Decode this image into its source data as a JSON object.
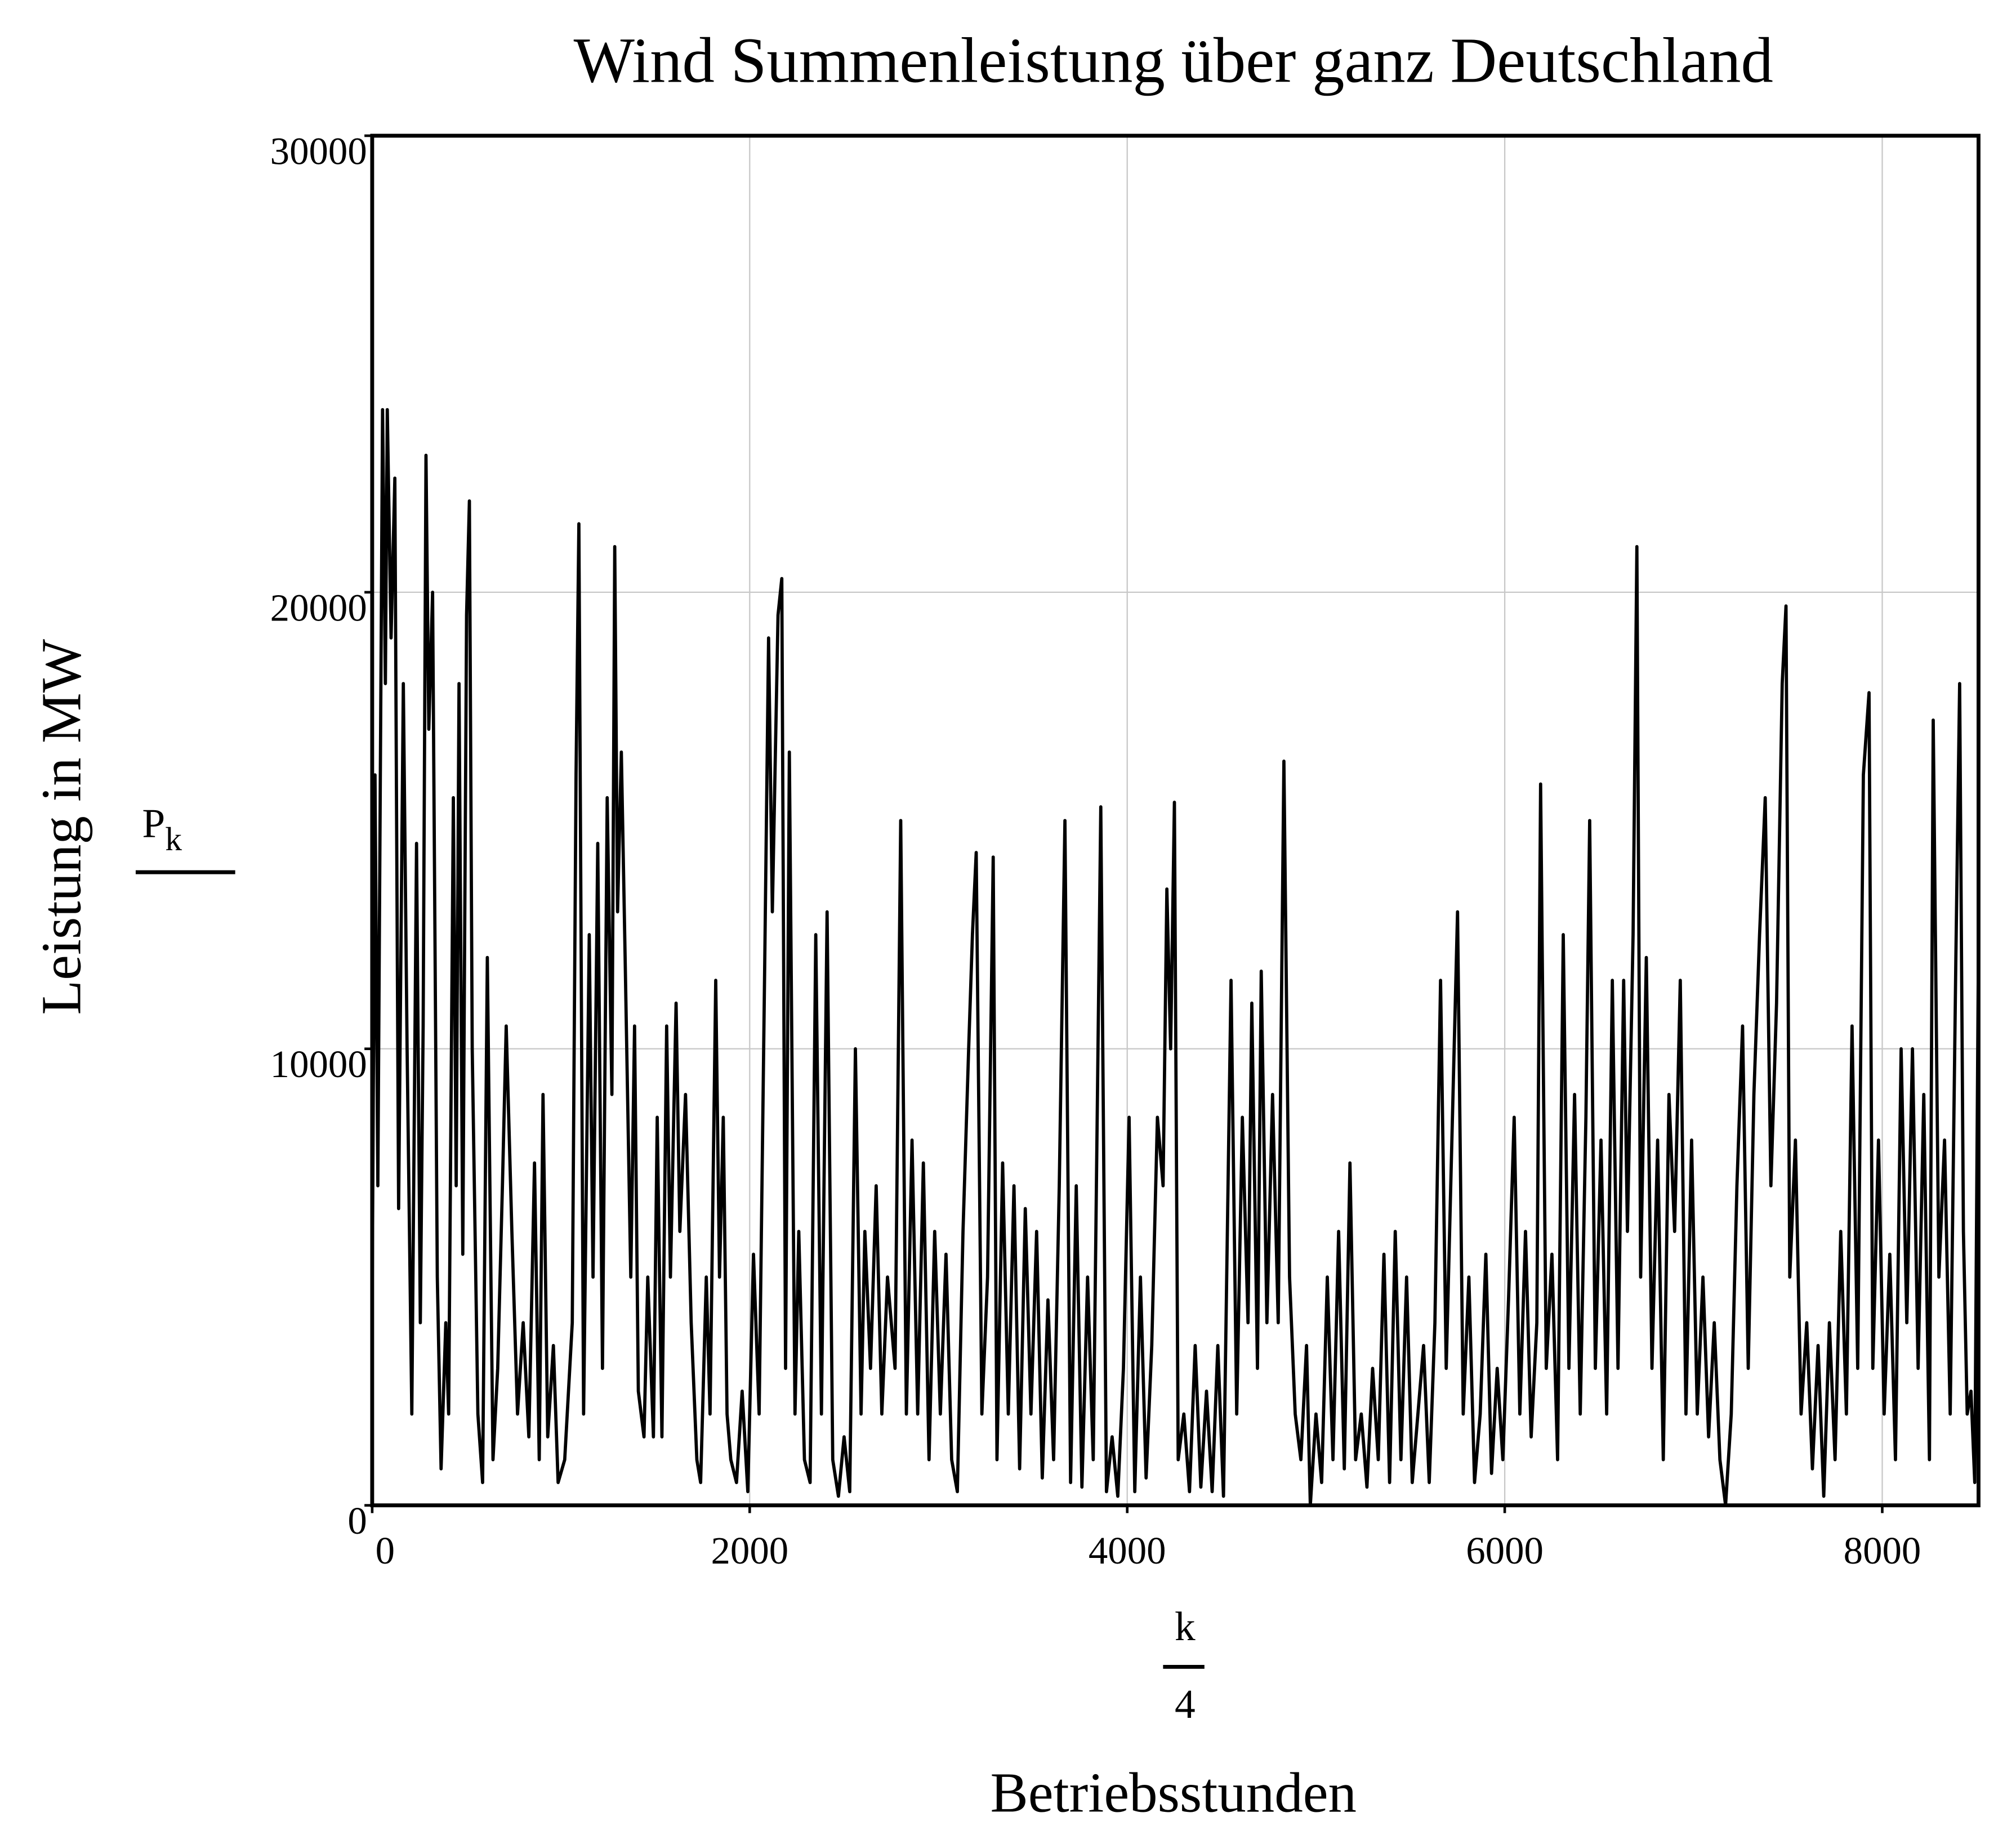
{
  "chart_data": {
    "type": "line",
    "title": "Wind Summenleistung über ganz Deutschland",
    "y_label": "Leistung in MW",
    "y_expression": {
      "base": "P",
      "subscript": "k"
    },
    "x_expression": {
      "numerator": "k",
      "denominator": "4"
    },
    "x_label": "Betriebsstunden",
    "xlim": [
      0,
      8510
    ],
    "ylim": [
      0,
      30000
    ],
    "xticks": [
      0,
      2000,
      4000,
      6000,
      8000
    ],
    "yticks": [
      0,
      10000,
      20000,
      30000
    ],
    "grid": true,
    "series": [
      {
        "color": "#000000",
        "x": [
          0,
          15,
          30,
          55,
          70,
          80,
          100,
          120,
          140,
          165,
          185,
          210,
          235,
          255,
          270,
          285,
          300,
          320,
          345,
          365,
          390,
          405,
          430,
          445,
          460,
          480,
          500,
          515,
          530,
          560,
          585,
          610,
          640,
          665,
          690,
          710,
          740,
          770,
          800,
          830,
          860,
          885,
          905,
          930,
          960,
          985,
          1020,
          1060,
          1080,
          1095,
          1120,
          1150,
          1170,
          1195,
          1220,
          1245,
          1270,
          1285,
          1300,
          1320,
          1340,
          1370,
          1390,
          1410,
          1440,
          1460,
          1490,
          1510,
          1535,
          1560,
          1580,
          1610,
          1630,
          1660,
          1690,
          1720,
          1740,
          1770,
          1790,
          1820,
          1840,
          1860,
          1880,
          1900,
          1930,
          1960,
          1990,
          2020,
          2050,
          2080,
          2100,
          2120,
          2150,
          2170,
          2190,
          2210,
          2240,
          2260,
          2290,
          2320,
          2350,
          2380,
          2410,
          2440,
          2470,
          2500,
          2530,
          2560,
          2590,
          2610,
          2640,
          2670,
          2700,
          2730,
          2770,
          2800,
          2830,
          2860,
          2890,
          2920,
          2950,
          2980,
          3010,
          3040,
          3070,
          3100,
          3130,
          3160,
          3180,
          3200,
          3230,
          3260,
          3290,
          3310,
          3340,
          3370,
          3400,
          3430,
          3460,
          3490,
          3520,
          3550,
          3580,
          3610,
          3640,
          3670,
          3700,
          3730,
          3760,
          3790,
          3820,
          3860,
          3890,
          3920,
          3950,
          3980,
          4010,
          4040,
          4070,
          4100,
          4130,
          4160,
          4190,
          4210,
          4230,
          4250,
          4270,
          4300,
          4330,
          4360,
          4390,
          4420,
          4450,
          4480,
          4510,
          4550,
          4580,
          4610,
          4640,
          4660,
          4690,
          4710,
          4740,
          4770,
          4800,
          4830,
          4860,
          4890,
          4920,
          4950,
          4970,
          5000,
          5030,
          5060,
          5090,
          5120,
          5150,
          5180,
          5210,
          5240,
          5270,
          5300,
          5330,
          5360,
          5390,
          5420,
          5450,
          5480,
          5510,
          5540,
          5570,
          5600,
          5630,
          5660,
          5690,
          5720,
          5750,
          5780,
          5810,
          5840,
          5870,
          5900,
          5930,
          5960,
          5990,
          6020,
          6050,
          6080,
          6110,
          6140,
          6170,
          6190,
          6220,
          6250,
          6280,
          6310,
          6340,
          6370,
          6400,
          6430,
          6450,
          6480,
          6510,
          6540,
          6570,
          6600,
          6630,
          6650,
          6680,
          6700,
          6720,
          6750,
          6780,
          6810,
          6840,
          6870,
          6900,
          6930,
          6960,
          6990,
          7020,
          7050,
          7080,
          7110,
          7140,
          7170,
          7200,
          7230,
          7260,
          7290,
          7320,
          7350,
          7380,
          7410,
          7440,
          7470,
          7490,
          7510,
          7540,
          7570,
          7600,
          7630,
          7660,
          7690,
          7720,
          7750,
          7780,
          7810,
          7840,
          7870,
          7900,
          7930,
          7950,
          7980,
          8010,
          8040,
          8070,
          8100,
          8130,
          8160,
          8190,
          8220,
          8250,
          8270,
          8300,
          8330,
          8360,
          8390,
          8410,
          8430,
          8450,
          8470,
          8490,
          8510
        ],
        "values": [
          4500,
          16000,
          7000,
          24000,
          18000,
          24000,
          19000,
          22500,
          6500,
          18000,
          10000,
          2000,
          14500,
          4000,
          10500,
          23000,
          17000,
          20000,
          5000,
          800,
          4000,
          2000,
          15500,
          7000,
          18000,
          5500,
          19500,
          22000,
          10000,
          2000,
          500,
          12000,
          1000,
          3000,
          7000,
          10500,
          6000,
          2000,
          4000,
          1500,
          7500,
          1000,
          9000,
          1500,
          3500,
          500,
          1000,
          4000,
          16000,
          21500,
          2000,
          12500,
          5000,
          14500,
          3000,
          15500,
          9000,
          21000,
          13000,
          16500,
          12000,
          5000,
          10500,
          2500,
          1500,
          5000,
          1500,
          8500,
          1500,
          10500,
          5000,
          11000,
          6000,
          9000,
          4000,
          1000,
          500,
          5000,
          2000,
          11500,
          5000,
          8500,
          2000,
          1000,
          500,
          2500,
          300,
          5500,
          2000,
          12000,
          19000,
          13000,
          19500,
          20300,
          3000,
          16500,
          2000,
          6000,
          1000,
          500,
          12500,
          2000,
          13000,
          1000,
          200,
          1500,
          300,
          10000,
          2000,
          6000,
          3000,
          7000,
          2000,
          5000,
          3000,
          15000,
          2000,
          8000,
          2000,
          7500,
          1000,
          6000,
          2000,
          5500,
          1000,
          300,
          6000,
          10000,
          12500,
          14300,
          2000,
          5000,
          14200,
          1000,
          7500,
          2000,
          7000,
          800,
          6500,
          2000,
          6000,
          600,
          4500,
          1000,
          7000,
          15000,
          500,
          7000,
          400,
          5000,
          1000,
          15300,
          300,
          1500,
          200,
          3000,
          8500,
          300,
          5000,
          600,
          3500,
          8500,
          7000,
          13500,
          10000,
          15400,
          1000,
          2000,
          300,
          3500,
          400,
          2500,
          300,
          3500,
          200,
          11500,
          2000,
          8500,
          4000,
          11000,
          3000,
          11700,
          4000,
          9000,
          4000,
          16300,
          5000,
          2000,
          1000,
          3500,
          0,
          2000,
          500,
          5000,
          1000,
          6000,
          800,
          7500,
          1000,
          2000,
          400,
          3000,
          1000,
          5500,
          500,
          6000,
          1000,
          5000,
          500,
          2000,
          3500,
          500,
          4000,
          11500,
          3000,
          8000,
          13000,
          2000,
          5000,
          500,
          2000,
          5500,
          700,
          3000,
          1000,
          4500,
          8500,
          2000,
          6000,
          1500,
          4000,
          15800,
          3000,
          5500,
          1000,
          12500,
          3000,
          9000,
          2000,
          8500,
          15000,
          3000,
          8000,
          2000,
          11500,
          3000,
          11500,
          6000,
          12500,
          21000,
          5000,
          12000,
          3000,
          8000,
          1000,
          9000,
          6000,
          11500,
          2000,
          8000,
          2000,
          5000,
          1500,
          4000,
          1000,
          0,
          2000,
          7000,
          10500,
          3000,
          9000,
          12500,
          15500,
          7000,
          11000,
          18000,
          19700,
          5000,
          8000,
          2000,
          4000,
          800,
          3500,
          200,
          4000,
          1000,
          6000,
          2000,
          10500,
          3000,
          16000,
          17800,
          3000,
          8000,
          2000,
          5500,
          1000,
          10000,
          4000,
          10000,
          3000,
          9000,
          1000,
          17200,
          5000,
          8000,
          2000,
          12000,
          18000,
          6000,
          2000,
          2500,
          500,
          12500
        ]
      }
    ]
  }
}
